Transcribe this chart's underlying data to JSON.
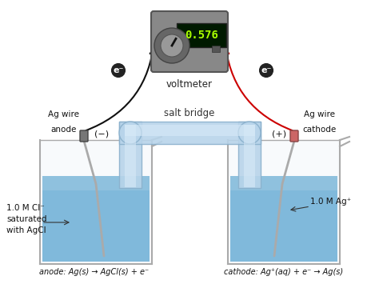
{
  "voltmeter_reading": "0.576",
  "voltmeter_label": "voltmeter",
  "salt_bridge_label": "salt bridge",
  "left_label1": "Ag wire",
  "left_label2": "anode",
  "right_label1": "Ag wire",
  "right_label2": "cathode",
  "minus_sign": "(−)",
  "plus_sign": "(+)",
  "left_solution": "1.0 M Cl⁻\nsaturated\nwith AgCl",
  "right_solution": "1.0 M Ag⁺",
  "anode_eq": "anode: Ag(s) → AgCl(s) + e⁻",
  "cathode_eq": "cathode: Ag⁺(aq) + e⁻ → Ag(s)",
  "bg_color": "#ffffff",
  "water_color_deep": "#6baed6",
  "water_color_light": "#9ecae1",
  "salt_bridge_color": "#b8d4ea",
  "salt_bridge_edge": "#8ab0cc",
  "voltmeter_body": "#888888",
  "voltmeter_edge": "#555555",
  "display_bg": "#001a00",
  "display_text": "#aaff00",
  "wire_left": "#111111",
  "wire_right": "#cc0000",
  "beaker_edge": "#aaaaaa",
  "beaker_fill": "#e8f0f8",
  "connector_left": "#888888",
  "connector_right": "#dd8888"
}
